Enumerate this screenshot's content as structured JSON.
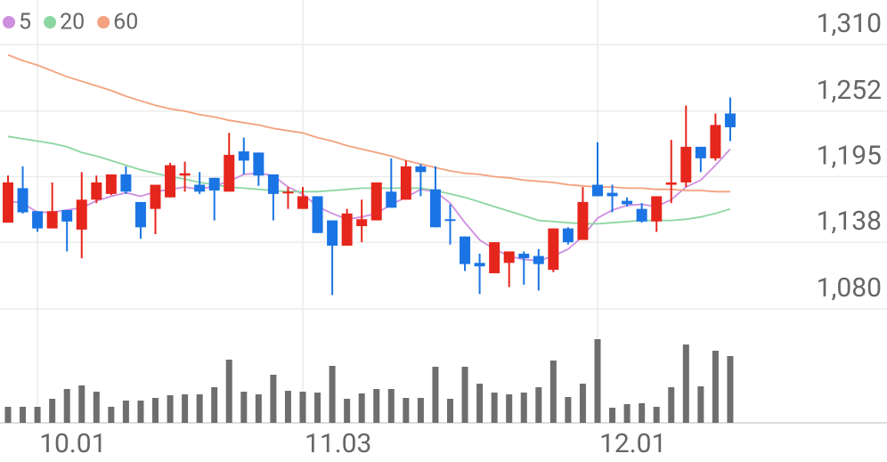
{
  "chart_data": {
    "type": "candlestick",
    "categories": [
      null,
      null,
      "10.01",
      null,
      null,
      null,
      null,
      null,
      null,
      null,
      null,
      null,
      null,
      null,
      null,
      null,
      null,
      null,
      null,
      null,
      "11.03",
      null,
      null,
      null,
      null,
      null,
      null,
      null,
      null,
      null,
      null,
      null,
      null,
      null,
      null,
      null,
      null,
      null,
      null,
      null,
      "12.01",
      null,
      null,
      null,
      null,
      null,
      null,
      null,
      null,
      null
    ],
    "open": [
      1155,
      1185,
      1165,
      1150,
      1166,
      1149,
      1175,
      1180,
      1197,
      1173,
      1167,
      1177,
      1196,
      1188,
      1194,
      1182,
      1217,
      1216,
      1197,
      1181,
      1167,
      1178,
      1157,
      1135,
      1152,
      1157,
      1182,
      1175,
      1204,
      1184,
      1158,
      1143,
      1120,
      1111,
      1120,
      1128,
      1126,
      1114,
      1150,
      1140,
      1188,
      1181,
      1174,
      1167,
      1156,
      1188,
      1190,
      1221,
      1211,
      1250
    ],
    "high": [
      1196,
      1204,
      1165,
      1190,
      1166,
      1199,
      1196,
      1197,
      1204,
      1173,
      1188,
      1207,
      1208,
      1199,
      1194,
      1233,
      1229,
      1216,
      1197,
      1186,
      1186,
      1178,
      1157,
      1167,
      1175,
      1190,
      1211,
      1209,
      1206,
      1204,
      1171,
      1143,
      1128,
      1138,
      1130,
      1130,
      1132,
      1150,
      1151,
      1186,
      1225,
      1188,
      1177,
      1172,
      1178,
      1227,
      1257,
      1221,
      1250,
      1264
    ],
    "low": [
      1155,
      1163,
      1147,
      1150,
      1130,
      1124,
      1172,
      1179,
      1180,
      1141,
      1145,
      1177,
      1182,
      1180,
      1157,
      1182,
      1197,
      1187,
      1157,
      1167,
      1167,
      1146,
      1092,
      1135,
      1138,
      1157,
      1168,
      1175,
      1178,
      1151,
      1136,
      1113,
      1093,
      1111,
      1099,
      1101,
      1096,
      1112,
      1136,
      1140,
      1178,
      1164,
      1169,
      1155,
      1147,
      1172,
      1186,
      1199,
      1209,
      1226
    ],
    "close": [
      1190,
      1164,
      1150,
      1165,
      1156,
      1175,
      1190,
      1197,
      1182,
      1151,
      1188,
      1205,
      1198,
      1182,
      1183,
      1214,
      1209,
      1196,
      1180,
      1182,
      1178,
      1146,
      1135,
      1163,
      1158,
      1190,
      1168,
      1204,
      1199,
      1151,
      1157,
      1119,
      1117,
      1138,
      1130,
      1124,
      1119,
      1150,
      1138,
      1173,
      1178,
      1178,
      1171,
      1156,
      1178,
      1190,
      1221,
      1211,
      1240,
      1238
    ],
    "up_color": "#e5261c",
    "down_color": "#1b74e4",
    "series": [
      {
        "name": "5",
        "color": "#cf8fe0",
        "values": [
          1174,
          1172,
          1164,
          1164,
          1166,
          1168,
          1174,
          1178,
          1181,
          1178,
          1182,
          1184,
          1186,
          1184,
          1187,
          1191,
          1197,
          1198,
          1196,
          1186,
          1180,
          1169,
          1163,
          1158,
          1160,
          1163,
          1171,
          1177,
          1184,
          1182,
          1172,
          1155,
          1140,
          1132,
          1126,
          1123,
          1122,
          1126,
          1132,
          1143,
          1159,
          1166,
          1170,
          1171,
          1169,
          1175,
          1186,
          1192,
          1205,
          1219
        ]
      },
      {
        "name": "20",
        "color": "#8cd6a2",
        "values": [
          1230,
          1228,
          1226,
          1224,
          1221,
          1216,
          1213,
          1209,
          1205,
          1201,
          1198,
          1195,
          1193,
          1190,
          1188,
          1186,
          1185,
          1184,
          1183,
          1182,
          1182,
          1182,
          1183,
          1184,
          1185,
          1185,
          1185,
          1185,
          1185,
          1183,
          1180,
          1177,
          1173,
          1169,
          1165,
          1161,
          1157,
          1156,
          1155,
          1154,
          1154,
          1155,
          1156,
          1157,
          1157,
          1157,
          1158,
          1160,
          1163,
          1167
        ]
      },
      {
        "name": "60",
        "color": "#f3a17e",
        "values": [
          1301,
          1296,
          1292,
          1287,
          1282,
          1278,
          1274,
          1270,
          1265,
          1261,
          1257,
          1254,
          1252,
          1249,
          1247,
          1244,
          1242,
          1240,
          1237,
          1235,
          1233,
          1229,
          1226,
          1222,
          1219,
          1216,
          1213,
          1209,
          1206,
          1203,
          1200,
          1198,
          1197,
          1195,
          1194,
          1192,
          1191,
          1190,
          1188,
          1187,
          1186,
          1186,
          1185,
          1185,
          1184,
          1184,
          1183,
          1183,
          1182,
          1182
        ]
      }
    ],
    "ylim": [
      1080,
      1310
    ],
    "yticks": [
      {
        "value": 1310,
        "label": "1,310"
      },
      {
        "value": 1252,
        "label": "1,252"
      },
      {
        "value": 1195,
        "label": "1,195"
      },
      {
        "value": 1138,
        "label": "1,138"
      },
      {
        "value": 1080,
        "label": "1,080"
      }
    ],
    "grid": true,
    "volume": {
      "color": "#6e6e6e",
      "ylim": [
        0,
        100
      ],
      "values": [
        18,
        18,
        18,
        27,
        38,
        42,
        35,
        18,
        25,
        25,
        28,
        31,
        32,
        32,
        40,
        71,
        35,
        32,
        54,
        36,
        35,
        34,
        64,
        27,
        33,
        38,
        38,
        28,
        28,
        63,
        27,
        63,
        44,
        34,
        32,
        34,
        40,
        70,
        29,
        44,
        94,
        17,
        21,
        22,
        18,
        40,
        88,
        41,
        81,
        75
      ]
    }
  }
}
